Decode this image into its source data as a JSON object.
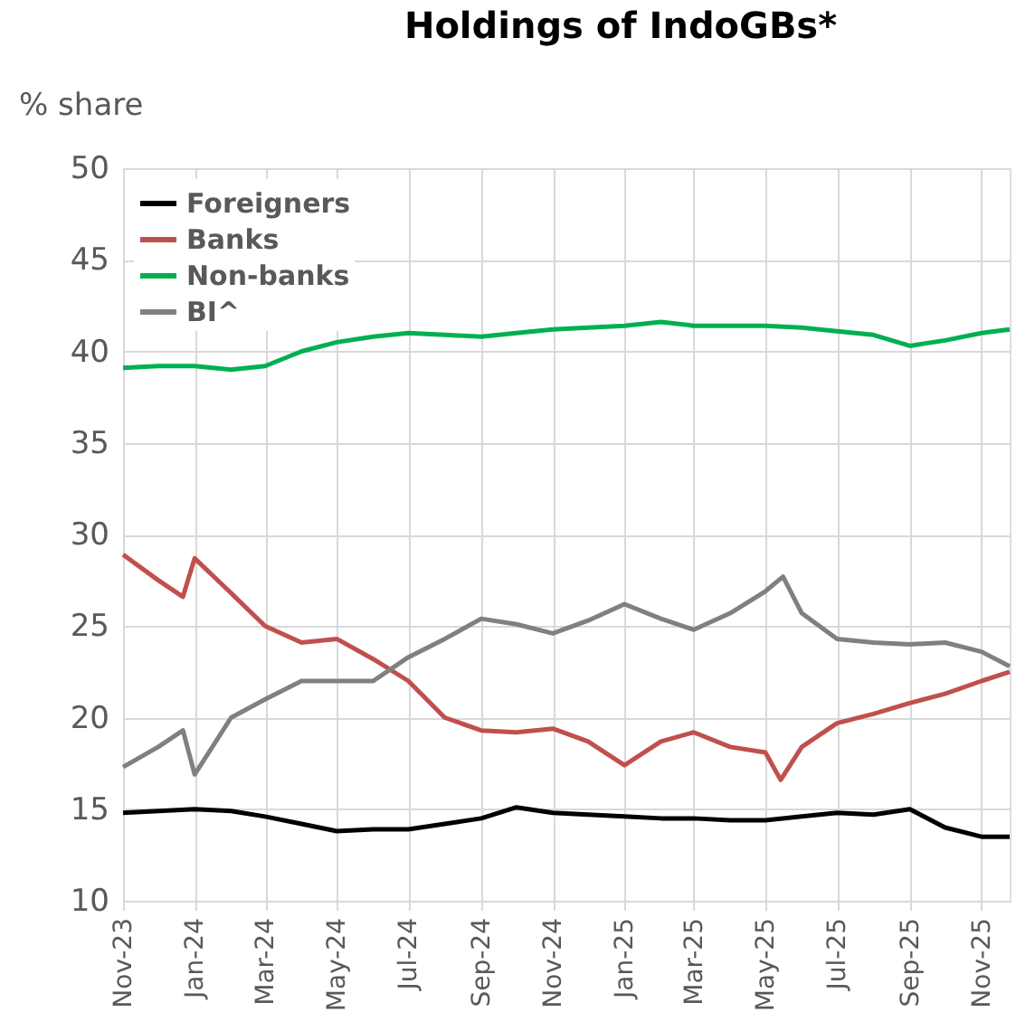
{
  "chart_data": {
    "type": "line",
    "title": "Holdings of IndoGBs*",
    "ylabel": "% share",
    "xlim": [
      "2023-11-01",
      "2025-11-25"
    ],
    "xticks": [
      {
        "value": "2023-11-01",
        "label": "Nov-23"
      },
      {
        "value": "2024-01-01",
        "label": "Jan-24"
      },
      {
        "value": "2024-03-01",
        "label": "Mar-24"
      },
      {
        "value": "2024-05-01",
        "label": "May-24"
      },
      {
        "value": "2024-07-01",
        "label": "Jul-24"
      },
      {
        "value": "2024-09-01",
        "label": "Sep-24"
      },
      {
        "value": "2024-11-01",
        "label": "Nov-24"
      },
      {
        "value": "2025-01-01",
        "label": "Jan-25"
      },
      {
        "value": "2025-03-01",
        "label": "Mar-25"
      },
      {
        "value": "2025-05-01",
        "label": "May-25"
      },
      {
        "value": "2025-07-01",
        "label": "Jul-25"
      },
      {
        "value": "2025-09-01",
        "label": "Sep-25"
      },
      {
        "value": "2025-11-01",
        "label": "Nov-25"
      }
    ],
    "ylim": [
      10,
      50
    ],
    "yticks": [
      10,
      15,
      20,
      25,
      30,
      35,
      40,
      45,
      50
    ],
    "grid": true,
    "legend": "top left",
    "line_style": "solid",
    "marker": "none",
    "series": [
      {
        "name": "Foreigners",
        "color": "#000000",
        "x": [
          "2023-11-01",
          "2023-12-01",
          "2024-01-01",
          "2024-02-01",
          "2024-03-01",
          "2024-04-01",
          "2024-05-01",
          "2024-06-01",
          "2024-07-01",
          "2024-08-01",
          "2024-09-01",
          "2024-10-01",
          "2024-11-01",
          "2024-12-01",
          "2025-01-01",
          "2025-02-01",
          "2025-03-01",
          "2025-04-01",
          "2025-05-01",
          "2025-06-01",
          "2025-07-01",
          "2025-08-01",
          "2025-09-01",
          "2025-10-01",
          "2025-11-01",
          "2025-11-25"
        ],
        "values": [
          14.8,
          14.9,
          15.0,
          14.9,
          14.6,
          14.2,
          13.8,
          13.9,
          13.9,
          14.2,
          14.5,
          15.1,
          14.8,
          14.7,
          14.6,
          14.5,
          14.5,
          14.4,
          14.4,
          14.6,
          14.8,
          14.7,
          15.0,
          14.0,
          13.5,
          13.5
        ]
      },
      {
        "name": "Banks",
        "color": "#c0504d",
        "x": [
          "2023-11-01",
          "2023-12-01",
          "2023-12-22",
          "2024-01-01",
          "2024-02-01",
          "2024-03-01",
          "2024-04-01",
          "2024-05-01",
          "2024-06-01",
          "2024-07-01",
          "2024-08-01",
          "2024-09-01",
          "2024-10-01",
          "2024-11-01",
          "2024-12-01",
          "2025-01-01",
          "2025-02-01",
          "2025-03-01",
          "2025-04-01",
          "2025-05-01",
          "2025-05-14",
          "2025-06-01",
          "2025-07-01",
          "2025-08-01",
          "2025-09-01",
          "2025-10-01",
          "2025-11-01",
          "2025-11-25"
        ],
        "values": [
          28.9,
          27.5,
          26.6,
          28.7,
          26.8,
          25.0,
          24.1,
          24.3,
          23.2,
          22.0,
          20.0,
          19.3,
          19.2,
          19.4,
          18.7,
          17.4,
          18.7,
          19.2,
          18.4,
          18.1,
          16.6,
          18.4,
          19.7,
          20.2,
          20.8,
          21.3,
          22.0,
          22.5
        ]
      },
      {
        "name": "Non-banks",
        "color": "#00b050",
        "x": [
          "2023-11-01",
          "2023-12-01",
          "2024-01-01",
          "2024-02-01",
          "2024-03-01",
          "2024-04-01",
          "2024-05-01",
          "2024-06-01",
          "2024-07-01",
          "2024-08-01",
          "2024-09-01",
          "2024-10-01",
          "2024-11-01",
          "2024-12-01",
          "2025-01-01",
          "2025-02-01",
          "2025-03-01",
          "2025-04-01",
          "2025-05-01",
          "2025-06-01",
          "2025-07-01",
          "2025-08-01",
          "2025-09-01",
          "2025-10-01",
          "2025-11-01",
          "2025-11-25"
        ],
        "values": [
          39.1,
          39.2,
          39.2,
          39.0,
          39.2,
          40.0,
          40.5,
          40.8,
          41.0,
          40.9,
          40.8,
          41.0,
          41.2,
          41.3,
          41.4,
          41.6,
          41.4,
          41.4,
          41.4,
          41.3,
          41.1,
          40.9,
          40.3,
          40.6,
          41.0,
          41.2
        ]
      },
      {
        "name": "BI^",
        "color": "#808080",
        "x": [
          "2023-11-01",
          "2023-12-01",
          "2023-12-22",
          "2024-01-01",
          "2024-02-01",
          "2024-03-01",
          "2024-04-01",
          "2024-05-01",
          "2024-06-01",
          "2024-07-01",
          "2024-08-01",
          "2024-09-01",
          "2024-10-01",
          "2024-11-01",
          "2024-12-01",
          "2025-01-01",
          "2025-02-01",
          "2025-03-01",
          "2025-04-01",
          "2025-05-01",
          "2025-05-16",
          "2025-06-01",
          "2025-07-01",
          "2025-08-01",
          "2025-09-01",
          "2025-10-01",
          "2025-11-01",
          "2025-11-25"
        ],
        "values": [
          17.3,
          18.4,
          19.3,
          16.9,
          20.0,
          21.0,
          22.0,
          22.0,
          22.0,
          23.3,
          24.3,
          25.4,
          25.1,
          24.6,
          25.3,
          26.2,
          25.4,
          24.8,
          25.7,
          26.9,
          27.7,
          25.7,
          24.3,
          24.1,
          24.0,
          24.1,
          23.6,
          22.8
        ]
      }
    ]
  }
}
